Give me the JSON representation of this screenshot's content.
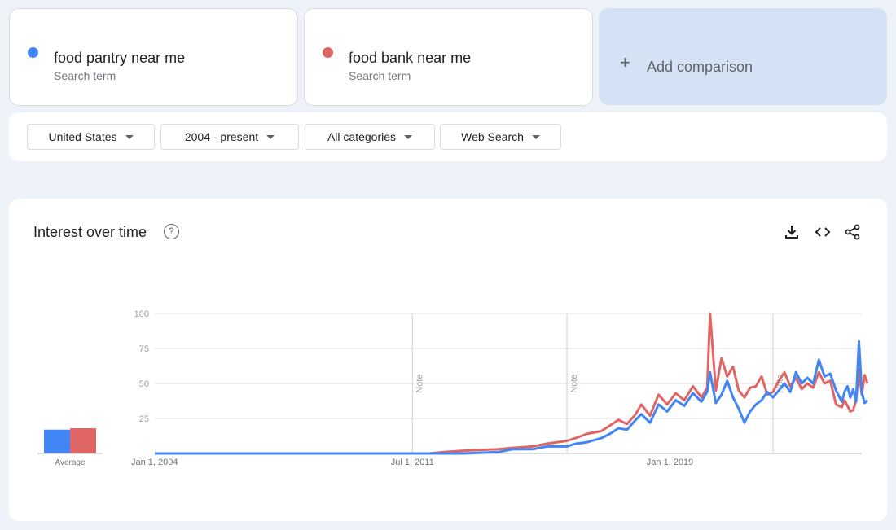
{
  "terms": [
    {
      "name": "food pantry near me",
      "sub": "Search term",
      "color": "#4285f4"
    },
    {
      "name": "food bank near me",
      "sub": "Search term",
      "color": "#e06666"
    }
  ],
  "add_comparison": "Add comparison",
  "filters": {
    "region": "United States",
    "time": "2004 - present",
    "category": "All categories",
    "property": "Web Search"
  },
  "panel": {
    "title": "Interest over time",
    "help_icon": "question-icon",
    "tools": [
      "download-icon",
      "embed-icon",
      "share-icon"
    ]
  },
  "chart_data": {
    "type": "line",
    "title": "Interest over time",
    "ylim": [
      0,
      100
    ],
    "y_ticks": [
      25,
      50,
      75,
      100
    ],
    "x_ticks": [
      "Jan 1, 2004",
      "Jul 1, 2011",
      "Jan 1, 2019"
    ],
    "notes": [
      {
        "x": "2011-07",
        "label": "Note"
      },
      {
        "x": "2016-01",
        "label": "Note"
      },
      {
        "x": "2022-01",
        "label": "Note"
      }
    ],
    "average": {
      "label": "Average",
      "values": [
        17,
        18
      ]
    },
    "x_range": [
      "2004-01",
      "2024-08"
    ],
    "series": [
      {
        "name": "food pantry near me",
        "color": "#4285f4",
        "points": [
          [
            "2004-01",
            0
          ],
          [
            "2012-01",
            0
          ],
          [
            "2013-01",
            0
          ],
          [
            "2014-01",
            1
          ],
          [
            "2014-06",
            3
          ],
          [
            "2015-01",
            3
          ],
          [
            "2015-06",
            5
          ],
          [
            "2016-01",
            5
          ],
          [
            "2016-04",
            7
          ],
          [
            "2016-08",
            8
          ],
          [
            "2017-01",
            11
          ],
          [
            "2017-04",
            14
          ],
          [
            "2017-07",
            18
          ],
          [
            "2017-10",
            17
          ],
          [
            "2018-01",
            24
          ],
          [
            "2018-03",
            28
          ],
          [
            "2018-06",
            22
          ],
          [
            "2018-09",
            35
          ],
          [
            "2018-12",
            30
          ],
          [
            "2019-03",
            38
          ],
          [
            "2019-06",
            34
          ],
          [
            "2019-09",
            43
          ],
          [
            "2019-12",
            37
          ],
          [
            "2020-02",
            44
          ],
          [
            "2020-03",
            58
          ],
          [
            "2020-05",
            36
          ],
          [
            "2020-07",
            42
          ],
          [
            "2020-09",
            52
          ],
          [
            "2020-11",
            40
          ],
          [
            "2021-01",
            32
          ],
          [
            "2021-03",
            22
          ],
          [
            "2021-05",
            30
          ],
          [
            "2021-07",
            35
          ],
          [
            "2021-09",
            38
          ],
          [
            "2021-11",
            44
          ],
          [
            "2022-01",
            40
          ],
          [
            "2022-03",
            45
          ],
          [
            "2022-05",
            50
          ],
          [
            "2022-07",
            44
          ],
          [
            "2022-09",
            58
          ],
          [
            "2022-11",
            50
          ],
          [
            "2023-01",
            54
          ],
          [
            "2023-03",
            50
          ],
          [
            "2023-05",
            67
          ],
          [
            "2023-07",
            55
          ],
          [
            "2023-09",
            57
          ],
          [
            "2023-11",
            45
          ],
          [
            "2024-01",
            37
          ],
          [
            "2024-02",
            44
          ],
          [
            "2024-03",
            48
          ],
          [
            "2024-04",
            40
          ],
          [
            "2024-05",
            46
          ],
          [
            "2024-06",
            37
          ],
          [
            "2024-07",
            80
          ],
          [
            "2024-08",
            44
          ],
          [
            "2024-09",
            36
          ],
          [
            "2024-10",
            38
          ]
        ]
      },
      {
        "name": "food bank near me",
        "color": "#e06666",
        "points": [
          [
            "2004-01",
            0
          ],
          [
            "2012-01",
            0
          ],
          [
            "2012-06",
            1
          ],
          [
            "2013-01",
            2
          ],
          [
            "2014-01",
            3
          ],
          [
            "2014-06",
            4
          ],
          [
            "2015-01",
            5
          ],
          [
            "2015-06",
            7
          ],
          [
            "2016-01",
            9
          ],
          [
            "2016-04",
            11
          ],
          [
            "2016-08",
            14
          ],
          [
            "2017-01",
            16
          ],
          [
            "2017-04",
            20
          ],
          [
            "2017-07",
            24
          ],
          [
            "2017-10",
            21
          ],
          [
            "2018-01",
            28
          ],
          [
            "2018-03",
            35
          ],
          [
            "2018-06",
            27
          ],
          [
            "2018-09",
            42
          ],
          [
            "2018-12",
            35
          ],
          [
            "2019-03",
            43
          ],
          [
            "2019-06",
            38
          ],
          [
            "2019-09",
            48
          ],
          [
            "2019-12",
            40
          ],
          [
            "2020-02",
            47
          ],
          [
            "2020-03",
            100
          ],
          [
            "2020-05",
            45
          ],
          [
            "2020-07",
            68
          ],
          [
            "2020-09",
            55
          ],
          [
            "2020-11",
            62
          ],
          [
            "2021-01",
            45
          ],
          [
            "2021-03",
            40
          ],
          [
            "2021-05",
            47
          ],
          [
            "2021-07",
            48
          ],
          [
            "2021-09",
            55
          ],
          [
            "2021-11",
            42
          ],
          [
            "2022-01",
            44
          ],
          [
            "2022-03",
            52
          ],
          [
            "2022-05",
            58
          ],
          [
            "2022-07",
            48
          ],
          [
            "2022-09",
            54
          ],
          [
            "2022-11",
            46
          ],
          [
            "2023-01",
            50
          ],
          [
            "2023-03",
            47
          ],
          [
            "2023-05",
            58
          ],
          [
            "2023-07",
            50
          ],
          [
            "2023-09",
            52
          ],
          [
            "2023-11",
            35
          ],
          [
            "2024-01",
            33
          ],
          [
            "2024-02",
            38
          ],
          [
            "2024-03",
            34
          ],
          [
            "2024-04",
            30
          ],
          [
            "2024-05",
            31
          ],
          [
            "2024-06",
            38
          ],
          [
            "2024-07",
            60
          ],
          [
            "2024-08",
            42
          ],
          [
            "2024-09",
            56
          ],
          [
            "2024-10",
            50
          ]
        ]
      }
    ]
  }
}
